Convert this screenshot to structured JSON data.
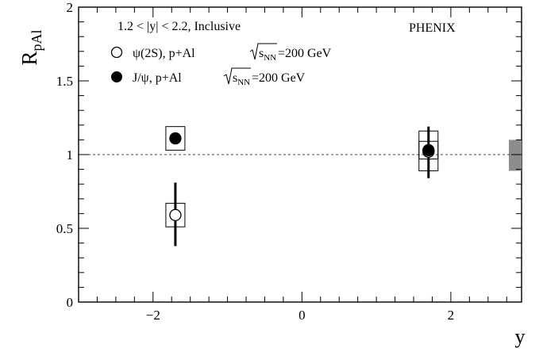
{
  "chart_data": {
    "type": "scatter",
    "xlabel": "y",
    "ylabel_main": "R",
    "ylabel_sub": "pAl",
    "xlim": [
      -3.0,
      2.95
    ],
    "ylim": [
      0,
      2
    ],
    "x_ticks": [
      -2,
      0,
      2
    ],
    "x_tick_labels": [
      "−2",
      "0",
      "2"
    ],
    "y_ticks": [
      0,
      0.5,
      1,
      1.5,
      2
    ],
    "y_tick_labels": [
      "0",
      "0.5",
      "1",
      "1.5",
      "2"
    ],
    "reference_line": 1.0,
    "grid": false,
    "legend_placement": "top-left",
    "annotation_range": "1.2 < |y| < 2.2, Inclusive",
    "experiment_label": "PHENIX",
    "global_uncertainty": [
      0.89,
      1.1
    ],
    "series": [
      {
        "name": "ψ(2S), p+Al",
        "energy_label": "=200 GeV",
        "marker": "open-circle",
        "points": [
          {
            "x": -1.7,
            "y": 0.59,
            "stat_low": 0.38,
            "stat_high": 0.81,
            "sys_low": 0.51,
            "sys_high": 0.67
          },
          {
            "x": 1.7,
            "y": 1.02,
            "stat_low": 0.84,
            "stat_high": 1.19,
            "sys_low": 0.89,
            "sys_high": 1.16
          }
        ]
      },
      {
        "name": "J/ψ, p+Al",
        "energy_label": "=200 GeV",
        "marker": "filled-circle",
        "points": [
          {
            "x": -1.7,
            "y": 1.11,
            "stat_low": 1.105,
            "stat_high": 1.115,
            "sys_low": 1.03,
            "sys_high": 1.19
          },
          {
            "x": 1.7,
            "y": 1.03,
            "stat_low": 1.01,
            "stat_high": 1.05,
            "sys_low": 0.97,
            "sys_high": 1.09
          }
        ]
      }
    ]
  }
}
